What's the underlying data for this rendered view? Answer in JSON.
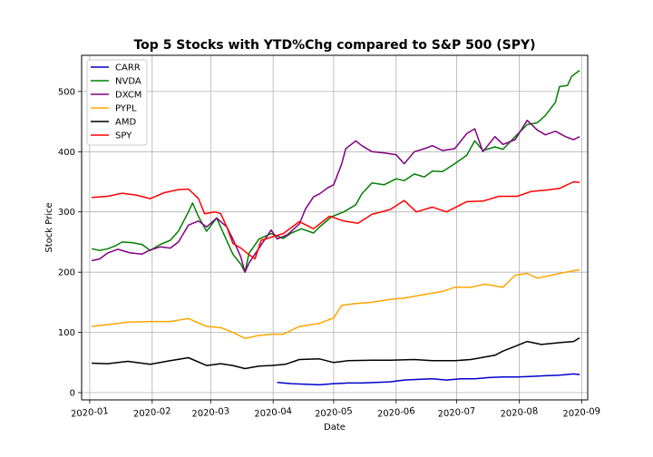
{
  "chart_data": {
    "type": "line",
    "title": "Top 5 Stocks with YTD%Chg compared to S&P 500 (SPY)",
    "xlabel": "Date",
    "ylabel": "Stock Price",
    "xlim": [
      "2019-12-28",
      "2020-09-04"
    ],
    "ylim": [
      -12,
      560
    ],
    "x_ticks": [
      "2020-01-01",
      "2020-02-01",
      "2020-03-01",
      "2020-04-01",
      "2020-05-01",
      "2020-06-01",
      "2020-07-01",
      "2020-08-01",
      "2020-09-01"
    ],
    "x_tick_labels": [
      "2020-01",
      "2020-02",
      "2020-03",
      "2020-04",
      "2020-05",
      "2020-06",
      "2020-07",
      "2020-08",
      "2020-09"
    ],
    "y_ticks": [
      0,
      100,
      200,
      300,
      400,
      500
    ],
    "grid": true,
    "legend_position": "upper-left",
    "series": [
      {
        "name": "CARR",
        "color": "#0000cc",
        "points": [
          [
            "2020-04-03",
            17
          ],
          [
            "2020-04-10",
            15
          ],
          [
            "2020-04-17",
            14
          ],
          [
            "2020-04-24",
            13
          ],
          [
            "2020-05-01",
            15
          ],
          [
            "2020-05-08",
            16
          ],
          [
            "2020-05-15",
            16
          ],
          [
            "2020-05-22",
            17
          ],
          [
            "2020-05-29",
            18
          ],
          [
            "2020-06-05",
            21
          ],
          [
            "2020-06-12",
            22
          ],
          [
            "2020-06-19",
            23
          ],
          [
            "2020-06-26",
            21
          ],
          [
            "2020-07-03",
            23
          ],
          [
            "2020-07-10",
            23
          ],
          [
            "2020-07-17",
            25
          ],
          [
            "2020-07-24",
            26
          ],
          [
            "2020-07-31",
            26
          ],
          [
            "2020-08-07",
            27
          ],
          [
            "2020-08-14",
            28
          ],
          [
            "2020-08-21",
            29
          ],
          [
            "2020-08-28",
            31
          ],
          [
            "2020-08-31",
            30
          ]
        ]
      },
      {
        "name": "NVDA",
        "color": "#008000",
        "points": [
          [
            "2020-01-02",
            239
          ],
          [
            "2020-01-06",
            236
          ],
          [
            "2020-01-10",
            239
          ],
          [
            "2020-01-14",
            244
          ],
          [
            "2020-01-17",
            250
          ],
          [
            "2020-01-22",
            249
          ],
          [
            "2020-01-27",
            246
          ],
          [
            "2020-01-31",
            236
          ],
          [
            "2020-02-05",
            246
          ],
          [
            "2020-02-10",
            253
          ],
          [
            "2020-02-14",
            268
          ],
          [
            "2020-02-19",
            300
          ],
          [
            "2020-02-21",
            315
          ],
          [
            "2020-02-24",
            292
          ],
          [
            "2020-02-28",
            268
          ],
          [
            "2020-03-04",
            290
          ],
          [
            "2020-03-09",
            252
          ],
          [
            "2020-03-12",
            230
          ],
          [
            "2020-03-16",
            213
          ],
          [
            "2020-03-18",
            200
          ],
          [
            "2020-03-20",
            231
          ],
          [
            "2020-03-25",
            255
          ],
          [
            "2020-03-31",
            264
          ],
          [
            "2020-04-06",
            256
          ],
          [
            "2020-04-10",
            265
          ],
          [
            "2020-04-15",
            272
          ],
          [
            "2020-04-21",
            265
          ],
          [
            "2020-04-24",
            275
          ],
          [
            "2020-04-30",
            292
          ],
          [
            "2020-05-06",
            300
          ],
          [
            "2020-05-12",
            312
          ],
          [
            "2020-05-15",
            330
          ],
          [
            "2020-05-20",
            348
          ],
          [
            "2020-05-26",
            345
          ],
          [
            "2020-06-01",
            355
          ],
          [
            "2020-06-05",
            352
          ],
          [
            "2020-06-10",
            363
          ],
          [
            "2020-06-15",
            358
          ],
          [
            "2020-06-19",
            368
          ],
          [
            "2020-06-24",
            367
          ],
          [
            "2020-06-30",
            380
          ],
          [
            "2020-07-06",
            394
          ],
          [
            "2020-07-10",
            418
          ],
          [
            "2020-07-14",
            402
          ],
          [
            "2020-07-20",
            408
          ],
          [
            "2020-07-24",
            404
          ],
          [
            "2020-07-30",
            425
          ],
          [
            "2020-08-05",
            445
          ],
          [
            "2020-08-10",
            448
          ],
          [
            "2020-08-14",
            460
          ],
          [
            "2020-08-19",
            482
          ],
          [
            "2020-08-21",
            508
          ],
          [
            "2020-08-25",
            510
          ],
          [
            "2020-08-27",
            525
          ],
          [
            "2020-08-31",
            535
          ]
        ]
      },
      {
        "name": "DXCM",
        "color": "#800080",
        "points": [
          [
            "2020-01-02",
            219
          ],
          [
            "2020-01-06",
            222
          ],
          [
            "2020-01-10",
            232
          ],
          [
            "2020-01-15",
            238
          ],
          [
            "2020-01-21",
            232
          ],
          [
            "2020-01-27",
            230
          ],
          [
            "2020-01-31",
            237
          ],
          [
            "2020-02-05",
            242
          ],
          [
            "2020-02-10",
            240
          ],
          [
            "2020-02-14",
            250
          ],
          [
            "2020-02-19",
            278
          ],
          [
            "2020-02-24",
            285
          ],
          [
            "2020-02-28",
            275
          ],
          [
            "2020-03-04",
            290
          ],
          [
            "2020-03-09",
            275
          ],
          [
            "2020-03-12",
            255
          ],
          [
            "2020-03-16",
            225
          ],
          [
            "2020-03-18",
            200
          ],
          [
            "2020-03-20",
            215
          ],
          [
            "2020-03-25",
            240
          ],
          [
            "2020-03-31",
            270
          ],
          [
            "2020-04-03",
            255
          ],
          [
            "2020-04-08",
            262
          ],
          [
            "2020-04-14",
            280
          ],
          [
            "2020-04-17",
            305
          ],
          [
            "2020-04-21",
            325
          ],
          [
            "2020-04-24",
            330
          ],
          [
            "2020-04-28",
            340
          ],
          [
            "2020-05-01",
            345
          ],
          [
            "2020-05-05",
            380
          ],
          [
            "2020-05-07",
            405
          ],
          [
            "2020-05-12",
            418
          ],
          [
            "2020-05-15",
            410
          ],
          [
            "2020-05-20",
            400
          ],
          [
            "2020-05-26",
            398
          ],
          [
            "2020-06-01",
            395
          ],
          [
            "2020-06-05",
            380
          ],
          [
            "2020-06-10",
            400
          ],
          [
            "2020-06-15",
            405
          ],
          [
            "2020-06-19",
            410
          ],
          [
            "2020-06-24",
            402
          ],
          [
            "2020-06-30",
            405
          ],
          [
            "2020-07-06",
            430
          ],
          [
            "2020-07-10",
            438
          ],
          [
            "2020-07-14",
            400
          ],
          [
            "2020-07-20",
            425
          ],
          [
            "2020-07-24",
            412
          ],
          [
            "2020-07-30",
            420
          ],
          [
            "2020-08-05",
            452
          ],
          [
            "2020-08-10",
            436
          ],
          [
            "2020-08-14",
            428
          ],
          [
            "2020-08-19",
            434
          ],
          [
            "2020-08-24",
            425
          ],
          [
            "2020-08-28",
            420
          ],
          [
            "2020-08-31",
            425
          ]
        ]
      },
      {
        "name": "PYPL",
        "color": "#ffa500",
        "points": [
          [
            "2020-01-02",
            110
          ],
          [
            "2020-01-10",
            113
          ],
          [
            "2020-01-20",
            117
          ],
          [
            "2020-01-31",
            118
          ],
          [
            "2020-02-10",
            118
          ],
          [
            "2020-02-19",
            123
          ],
          [
            "2020-02-28",
            110
          ],
          [
            "2020-03-06",
            108
          ],
          [
            "2020-03-12",
            100
          ],
          [
            "2020-03-18",
            90
          ],
          [
            "2020-03-25",
            95
          ],
          [
            "2020-03-31",
            97
          ],
          [
            "2020-04-06",
            97
          ],
          [
            "2020-04-14",
            110
          ],
          [
            "2020-04-24",
            115
          ],
          [
            "2020-05-01",
            124
          ],
          [
            "2020-05-05",
            145
          ],
          [
            "2020-05-12",
            148
          ],
          [
            "2020-05-20",
            150
          ],
          [
            "2020-05-29",
            155
          ],
          [
            "2020-06-05",
            157
          ],
          [
            "2020-06-15",
            163
          ],
          [
            "2020-06-24",
            168
          ],
          [
            "2020-06-30",
            175
          ],
          [
            "2020-07-08",
            175
          ],
          [
            "2020-07-15",
            180
          ],
          [
            "2020-07-24",
            175
          ],
          [
            "2020-07-30",
            195
          ],
          [
            "2020-08-05",
            198
          ],
          [
            "2020-08-10",
            190
          ],
          [
            "2020-08-17",
            195
          ],
          [
            "2020-08-24",
            200
          ],
          [
            "2020-08-31",
            204
          ]
        ]
      },
      {
        "name": "AMD",
        "color": "#000000",
        "points": [
          [
            "2020-01-02",
            49
          ],
          [
            "2020-01-10",
            48
          ],
          [
            "2020-01-20",
            52
          ],
          [
            "2020-01-31",
            47
          ],
          [
            "2020-02-10",
            53
          ],
          [
            "2020-02-19",
            58
          ],
          [
            "2020-02-28",
            45
          ],
          [
            "2020-03-06",
            48
          ],
          [
            "2020-03-12",
            45
          ],
          [
            "2020-03-18",
            40
          ],
          [
            "2020-03-25",
            44
          ],
          [
            "2020-03-31",
            45
          ],
          [
            "2020-04-07",
            47
          ],
          [
            "2020-04-14",
            55
          ],
          [
            "2020-04-24",
            56
          ],
          [
            "2020-05-01",
            50
          ],
          [
            "2020-05-08",
            53
          ],
          [
            "2020-05-20",
            54
          ],
          [
            "2020-05-29",
            54
          ],
          [
            "2020-06-10",
            55
          ],
          [
            "2020-06-19",
            53
          ],
          [
            "2020-06-30",
            53
          ],
          [
            "2020-07-08",
            55
          ],
          [
            "2020-07-20",
            62
          ],
          [
            "2020-07-24",
            69
          ],
          [
            "2020-07-30",
            77
          ],
          [
            "2020-08-05",
            85
          ],
          [
            "2020-08-12",
            80
          ],
          [
            "2020-08-21",
            83
          ],
          [
            "2020-08-28",
            85
          ],
          [
            "2020-08-31",
            91
          ]
        ]
      },
      {
        "name": "SPY",
        "color": "#ff0000",
        "points": [
          [
            "2020-01-02",
            324
          ],
          [
            "2020-01-10",
            326
          ],
          [
            "2020-01-17",
            331
          ],
          [
            "2020-01-24",
            328
          ],
          [
            "2020-01-31",
            322
          ],
          [
            "2020-02-07",
            332
          ],
          [
            "2020-02-14",
            337
          ],
          [
            "2020-02-19",
            338
          ],
          [
            "2020-02-24",
            322
          ],
          [
            "2020-02-27",
            297
          ],
          [
            "2020-03-03",
            300
          ],
          [
            "2020-03-06",
            297
          ],
          [
            "2020-03-09",
            275
          ],
          [
            "2020-03-12",
            248
          ],
          [
            "2020-03-16",
            240
          ],
          [
            "2020-03-20",
            229
          ],
          [
            "2020-03-23",
            222
          ],
          [
            "2020-03-26",
            253
          ],
          [
            "2020-03-31",
            258
          ],
          [
            "2020-04-06",
            264
          ],
          [
            "2020-04-14",
            284
          ],
          [
            "2020-04-21",
            272
          ],
          [
            "2020-04-29",
            293
          ],
          [
            "2020-05-06",
            285
          ],
          [
            "2020-05-13",
            281
          ],
          [
            "2020-05-20",
            296
          ],
          [
            "2020-05-29",
            304
          ],
          [
            "2020-06-05",
            319
          ],
          [
            "2020-06-11",
            300
          ],
          [
            "2020-06-19",
            308
          ],
          [
            "2020-06-26",
            300
          ],
          [
            "2020-07-06",
            317
          ],
          [
            "2020-07-14",
            318
          ],
          [
            "2020-07-22",
            326
          ],
          [
            "2020-07-31",
            326
          ],
          [
            "2020-08-07",
            334
          ],
          [
            "2020-08-14",
            336
          ],
          [
            "2020-08-21",
            339
          ],
          [
            "2020-08-28",
            350
          ],
          [
            "2020-08-31",
            349
          ]
        ]
      }
    ]
  }
}
